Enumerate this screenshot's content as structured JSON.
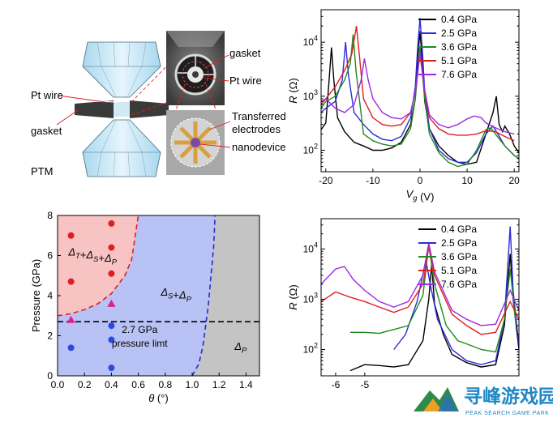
{
  "schematic": {
    "labels": {
      "pt_wire_left": "Pt wire",
      "gasket_left": "gasket",
      "ptm": "PTM",
      "gasket_right": "gasket",
      "pt_wire_right": "Pt wire",
      "transferred_1": "Transferred",
      "transferred_2": "electrodes",
      "nanodevice": "nanodevice"
    }
  },
  "chart_data": [
    {
      "type": "line",
      "panel": "top-right",
      "xlabel": "V_g (V)",
      "ylabel": "R (Ω)",
      "xlim": [
        -21,
        21
      ],
      "ylim": [
        40,
        40000
      ],
      "log_y": true,
      "xticks": [
        -20,
        -10,
        0,
        10,
        20
      ],
      "yticks": [
        "10^2",
        "10^3",
        "10^4"
      ],
      "legend_position": "top-right",
      "series": [
        {
          "name": "0.4 GPa",
          "color": "#000000",
          "points": [
            [
              -21,
              240
            ],
            [
              -20,
              320
            ],
            [
              -19.3,
              2000
            ],
            [
              -18.8,
              8000
            ],
            [
              -18.3,
              2000
            ],
            [
              -17.5,
              400
            ],
            [
              -16,
              220
            ],
            [
              -14,
              140
            ],
            [
              -12,
              120
            ],
            [
              -10,
              100
            ],
            [
              -8,
              100
            ],
            [
              -6,
              110
            ],
            [
              -4,
              140
            ],
            [
              -2,
              300
            ],
            [
              -1,
              900
            ],
            [
              -0.5,
              5000
            ],
            [
              0,
              16000
            ],
            [
              0.5,
              4000
            ],
            [
              1,
              800
            ],
            [
              2,
              250
            ],
            [
              4,
              120
            ],
            [
              6,
              80
            ],
            [
              8,
              60
            ],
            [
              10,
              55
            ],
            [
              12,
              60
            ],
            [
              14,
              200
            ],
            [
              15.5,
              500
            ],
            [
              16.2,
              1000
            ],
            [
              16.8,
              300
            ],
            [
              17.5,
              220
            ],
            [
              18,
              280
            ],
            [
              19,
              200
            ],
            [
              20,
              120
            ],
            [
              21,
              90
            ]
          ]
        },
        {
          "name": "2.5 GPa",
          "color": "#2b2bdb",
          "points": [
            [
              -21,
              500
            ],
            [
              -20,
              600
            ],
            [
              -18,
              800
            ],
            [
              -16.5,
              2000
            ],
            [
              -15.8,
              10000
            ],
            [
              -15.2,
              2500
            ],
            [
              -14,
              500
            ],
            [
              -12,
              300
            ],
            [
              -10,
              200
            ],
            [
              -8,
              160
            ],
            [
              -6,
              150
            ],
            [
              -4,
              180
            ],
            [
              -2,
              400
            ],
            [
              -1,
              1500
            ],
            [
              -0.5,
              8000
            ],
            [
              0,
              28000
            ],
            [
              0.5,
              7000
            ],
            [
              1,
              1200
            ],
            [
              2,
              250
            ],
            [
              4,
              100
            ],
            [
              6,
              70
            ],
            [
              8,
              60
            ],
            [
              10,
              60
            ],
            [
              12,
              90
            ],
            [
              14,
              200
            ],
            [
              15.5,
              280
            ],
            [
              16.5,
              200
            ],
            [
              18,
              120
            ],
            [
              20,
              80
            ],
            [
              21,
              70
            ]
          ]
        },
        {
          "name": "3.6 GPa",
          "color": "#1f8a1f",
          "points": [
            [
              -21,
              600
            ],
            [
              -20,
              800
            ],
            [
              -18,
              1000
            ],
            [
              -16,
              2000
            ],
            [
              -14.8,
              4000
            ],
            [
              -14.2,
              14000
            ],
            [
              -13.6,
              3000
            ],
            [
              -12,
              200
            ],
            [
              -10,
              150
            ],
            [
              -8,
              130
            ],
            [
              -6,
              120
            ],
            [
              -4,
              130
            ],
            [
              -2,
              250
            ],
            [
              -1,
              900
            ],
            [
              0,
              8000
            ],
            [
              1,
              900
            ],
            [
              2,
              200
            ],
            [
              4,
              90
            ],
            [
              6,
              60
            ],
            [
              8,
              50
            ],
            [
              10,
              55
            ],
            [
              12,
              100
            ],
            [
              14,
              240
            ],
            [
              15,
              260
            ],
            [
              16,
              200
            ],
            [
              18,
              120
            ],
            [
              20,
              80
            ],
            [
              21,
              70
            ]
          ]
        },
        {
          "name": "5.1 GPa",
          "color": "#e01e1e",
          "points": [
            [
              -21,
              700
            ],
            [
              -20,
              900
            ],
            [
              -18,
              1500
            ],
            [
              -16,
              3000
            ],
            [
              -14.5,
              6000
            ],
            [
              -13.5,
              20000
            ],
            [
              -12.8,
              5000
            ],
            [
              -12,
              900
            ],
            [
              -10,
              400
            ],
            [
              -8,
              300
            ],
            [
              -6,
              280
            ],
            [
              -4,
              300
            ],
            [
              -2,
              500
            ],
            [
              -1,
              1200
            ],
            [
              0,
              6000
            ],
            [
              1,
              1200
            ],
            [
              2,
              400
            ],
            [
              4,
              250
            ],
            [
              6,
              200
            ],
            [
              8,
              190
            ],
            [
              10,
              190
            ],
            [
              12,
              200
            ],
            [
              14,
              230
            ],
            [
              16,
              220
            ],
            [
              18,
              180
            ],
            [
              20,
              150
            ]
          ]
        },
        {
          "name": "7.6 GPa",
          "color": "#9b2be0",
          "points": [
            [
              -21,
              800
            ],
            [
              -20,
              900
            ],
            [
              -18,
              600
            ],
            [
              -16,
              500
            ],
            [
              -14,
              700
            ],
            [
              -12.5,
              2000
            ],
            [
              -11.8,
              5000
            ],
            [
              -11,
              2000
            ],
            [
              -10,
              900
            ],
            [
              -8,
              500
            ],
            [
              -6,
              400
            ],
            [
              -4,
              380
            ],
            [
              -2,
              500
            ],
            [
              -1,
              1200
            ],
            [
              0,
              6500
            ],
            [
              1,
              1300
            ],
            [
              2,
              450
            ],
            [
              4,
              300
            ],
            [
              6,
              260
            ],
            [
              8,
              300
            ],
            [
              10,
              380
            ],
            [
              11.5,
              430
            ],
            [
              13,
              400
            ],
            [
              14,
              320
            ],
            [
              16,
              260
            ],
            [
              18,
              220
            ],
            [
              20,
              200
            ]
          ]
        }
      ]
    },
    {
      "type": "scatter",
      "panel": "bottom-left",
      "xlabel": "θ (°)",
      "ylabel": "Pressure (GPa)",
      "xlim": [
        0.0,
        1.5
      ],
      "ylim": [
        0,
        8
      ],
      "xticks": [
        0.0,
        0.2,
        0.4,
        0.6,
        0.8,
        1.0,
        1.2,
        1.4
      ],
      "yticks": [
        0,
        2,
        4,
        6,
        8
      ],
      "region_labels": {
        "red": "Δ_T+Δ_S+Δ_P",
        "blue": "Δ_S+Δ_P",
        "gray": "Δ_P"
      },
      "region_colors": {
        "red": "#f8c3c3",
        "blue": "#b8c2f4",
        "gray": "#c4c4c4"
      },
      "boundary_red_blue": [
        [
          0.0,
          3.0
        ],
        [
          0.1,
          3.1
        ],
        [
          0.2,
          3.3
        ],
        [
          0.3,
          3.6
        ],
        [
          0.4,
          4.1
        ],
        [
          0.5,
          5.0
        ],
        [
          0.55,
          5.8
        ],
        [
          0.6,
          8.0
        ]
      ],
      "boundary_blue_gray": [
        [
          1.0,
          0.0
        ],
        [
          1.05,
          0.6
        ],
        [
          1.08,
          1.5
        ],
        [
          1.1,
          2.5
        ],
        [
          1.12,
          3.5
        ],
        [
          1.14,
          5.0
        ],
        [
          1.16,
          6.5
        ],
        [
          1.17,
          8.0
        ]
      ],
      "pressure_limit": 2.7,
      "annotation_line1": "2.7 GPa",
      "annotation_line2": "pressure limt",
      "points": {
        "red_circles": [
          [
            0.1,
            7.0
          ],
          [
            0.1,
            4.7
          ],
          [
            0.4,
            7.6
          ],
          [
            0.4,
            6.4
          ],
          [
            0.4,
            5.1
          ]
        ],
        "magenta_triangles": [
          [
            0.1,
            2.8
          ],
          [
            0.4,
            3.6
          ]
        ],
        "blue_circles": [
          [
            0.1,
            1.4
          ],
          [
            0.4,
            2.5
          ],
          [
            0.4,
            1.8
          ],
          [
            0.4,
            0.4
          ]
        ]
      }
    },
    {
      "type": "line",
      "panel": "bottom-right",
      "ylabel": "R (Ω)",
      "xlim": [
        -6.5,
        0.3
      ],
      "ylim": [
        30,
        40000
      ],
      "log_y": true,
      "xticks": [
        -6,
        -5
      ],
      "yticks": [
        "10^2",
        "10^3",
        "10^4"
      ],
      "legend_position": "top-right",
      "series": [
        {
          "name": "0.4 GPa",
          "color": "#000000",
          "points": [
            [
              -5.5,
              38
            ],
            [
              -5,
              50
            ],
            [
              -4.5,
              48
            ],
            [
              -4,
              45
            ],
            [
              -3.5,
              50
            ],
            [
              -3,
              150
            ],
            [
              -2.8,
              1000
            ],
            [
              -2.7,
              5000
            ],
            [
              -2.6,
              800
            ],
            [
              -2.3,
              200
            ],
            [
              -2,
              80
            ],
            [
              -1.5,
              55
            ],
            [
              -1,
              45
            ],
            [
              -0.5,
              50
            ],
            [
              -0.2,
              300
            ],
            [
              0,
              8000
            ],
            [
              0.1,
              1000
            ],
            [
              0.3,
              100
            ]
          ]
        },
        {
          "name": "2.5 GPa",
          "color": "#2b2bdb",
          "points": [
            [
              -4,
              100
            ],
            [
              -3.6,
              200
            ],
            [
              -3.2,
              900
            ],
            [
              -2.9,
              6000
            ],
            [
              -2.75,
              2000
            ],
            [
              -2.5,
              400
            ],
            [
              -2,
              100
            ],
            [
              -1.5,
              60
            ],
            [
              -1,
              50
            ],
            [
              -0.5,
              60
            ],
            [
              -0.2,
              400
            ],
            [
              0,
              28000
            ],
            [
              0.1,
              1500
            ],
            [
              0.3,
              120
            ]
          ]
        },
        {
          "name": "3.6 GPa",
          "color": "#1f8a1f",
          "points": [
            [
              -5.5,
              220
            ],
            [
              -5,
              220
            ],
            [
              -4.5,
              210
            ],
            [
              -4,
              250
            ],
            [
              -3.5,
              300
            ],
            [
              -3,
              1200
            ],
            [
              -2.8,
              12000
            ],
            [
              -2.6,
              2000
            ],
            [
              -2.2,
              300
            ],
            [
              -1.8,
              150
            ],
            [
              -1.5,
              130
            ],
            [
              -1,
              100
            ],
            [
              -0.5,
              90
            ],
            [
              -0.2,
              400
            ],
            [
              0,
              4000
            ],
            [
              0.2,
              300
            ]
          ]
        },
        {
          "name": "5.1 GPa",
          "color": "#e01e1e",
          "points": [
            [
              -6.5,
              900
            ],
            [
              -6,
              1400
            ],
            [
              -5.5,
              1100
            ],
            [
              -5,
              900
            ],
            [
              -4.5,
              700
            ],
            [
              -4,
              550
            ],
            [
              -3.5,
              700
            ],
            [
              -3,
              2000
            ],
            [
              -2.8,
              11000
            ],
            [
              -2.6,
              3000
            ],
            [
              -2,
              500
            ],
            [
              -1.5,
              300
            ],
            [
              -1,
              200
            ],
            [
              -0.5,
              220
            ],
            [
              0,
              900
            ],
            [
              0.3,
              400
            ]
          ]
        },
        {
          "name": "7.6 GPa",
          "color": "#9b2be0",
          "points": [
            [
              -6.5,
              2000
            ],
            [
              -6,
              4000
            ],
            [
              -5.7,
              4500
            ],
            [
              -5.4,
              2500
            ],
            [
              -5,
              1500
            ],
            [
              -4.5,
              900
            ],
            [
              -4,
              700
            ],
            [
              -3.5,
              900
            ],
            [
              -3,
              3000
            ],
            [
              -2.8,
              13000
            ],
            [
              -2.6,
              3500
            ],
            [
              -2,
              600
            ],
            [
              -1.5,
              400
            ],
            [
              -1,
              300
            ],
            [
              -0.5,
              320
            ],
            [
              0,
              1500
            ],
            [
              0.3,
              600
            ]
          ]
        }
      ]
    }
  ],
  "watermark": {
    "text": "寻峰游戏园",
    "subtext": "PEAK SEARCH GAME PARK"
  }
}
